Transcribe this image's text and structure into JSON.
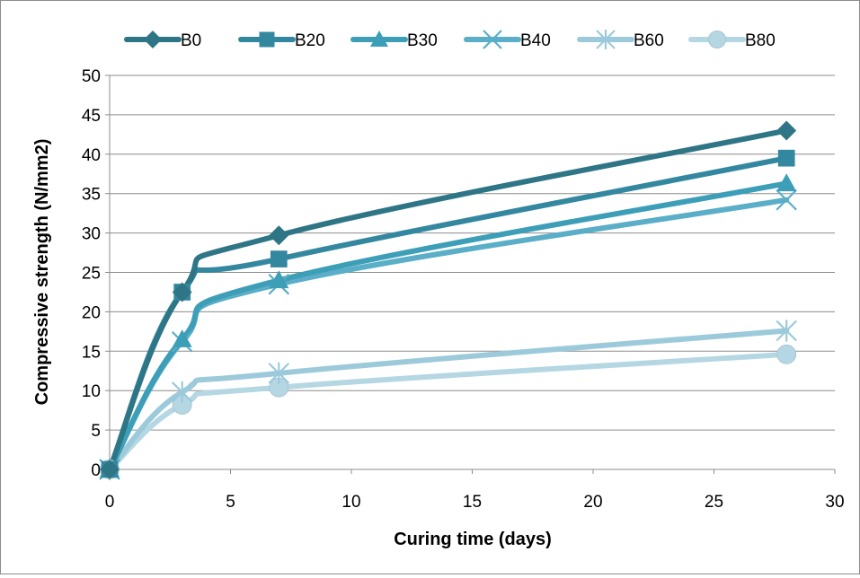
{
  "chart_data": {
    "type": "line",
    "title": "",
    "xlabel": "Curing time (days)",
    "ylabel": "Compressive strength (N/mm2)",
    "xlim": [
      0,
      30
    ],
    "ylim": [
      0,
      50
    ],
    "xticks": [
      "0",
      "5",
      "10",
      "15",
      "20",
      "25",
      "30"
    ],
    "yticks": [
      "0",
      "5",
      "10",
      "15",
      "20",
      "25",
      "30",
      "35",
      "40",
      "45",
      "50"
    ],
    "grid": "horizontal",
    "legend_position": "top",
    "x": [
      0,
      3,
      7,
      28
    ],
    "series": [
      {
        "name": "B0",
        "values": [
          0,
          22.5,
          29.7,
          43.0
        ],
        "color": "#2e7586",
        "marker": "diamond"
      },
      {
        "name": "B20",
        "values": [
          0,
          22.5,
          26.7,
          39.5
        ],
        "color": "#3388a0",
        "marker": "square"
      },
      {
        "name": "B30",
        "values": [
          0,
          16.5,
          24.0,
          36.3
        ],
        "color": "#3d9eb8",
        "marker": "triangle"
      },
      {
        "name": "B40",
        "values": [
          0,
          16.2,
          23.5,
          34.2
        ],
        "color": "#5aaec8",
        "marker": "x"
      },
      {
        "name": "B60",
        "values": [
          0,
          9.8,
          12.2,
          17.6
        ],
        "color": "#9ccadb",
        "marker": "star"
      },
      {
        "name": "B80",
        "values": [
          0,
          8.2,
          10.4,
          14.6
        ],
        "color": "#b5d7e3",
        "marker": "circle"
      }
    ]
  }
}
